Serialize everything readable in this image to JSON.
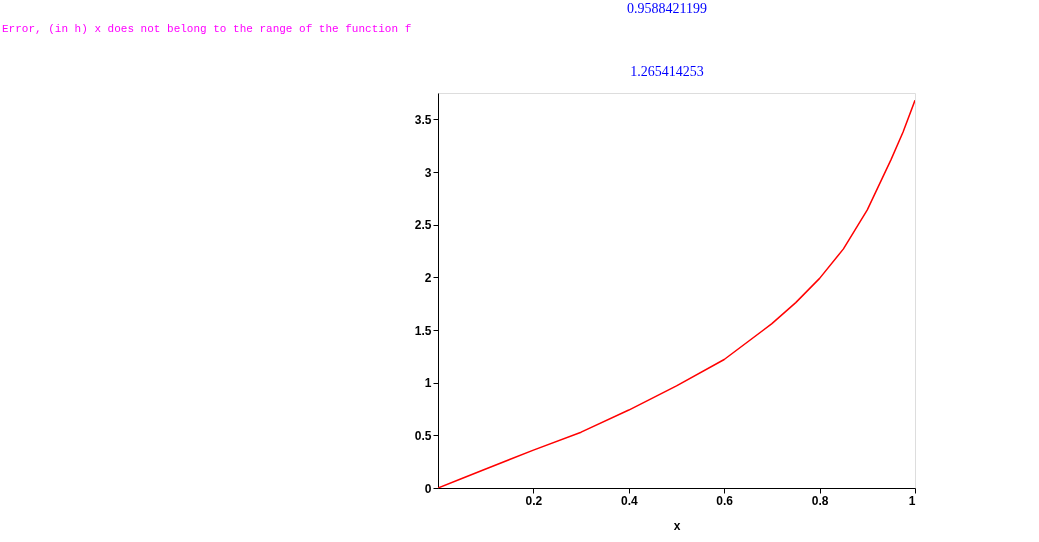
{
  "chart_data": {
    "type": "line",
    "xlabel": "x",
    "annotations": [
      "Error, (in h) x does not belong to the range of the function f",
      "0.9588421199",
      "1.265414253"
    ],
    "x": [
      0,
      0.05,
      0.1,
      0.2,
      0.3,
      0.4,
      0.5,
      0.6,
      0.7,
      0.75,
      0.8,
      0.85,
      0.9,
      0.95,
      0.975,
      1
    ],
    "series": [
      {
        "color": "#ff0000",
        "values": [
          0,
          0.09,
          0.18,
          0.36,
          0.53,
          0.74,
          0.97,
          1.22,
          1.56,
          1.76,
          1.99,
          2.27,
          2.64,
          3.12,
          3.38,
          3.68
        ]
      }
    ],
    "xlim": [
      0,
      1
    ],
    "ylim": [
      0,
      3.75
    ],
    "xticks": [
      0.2,
      0.4,
      0.6,
      0.8,
      1
    ],
    "yticks": [
      0,
      0.5,
      1,
      1.5,
      2,
      2.5,
      3,
      3.5
    ],
    "grid": false,
    "marker": "none",
    "line_style": "solid"
  }
}
